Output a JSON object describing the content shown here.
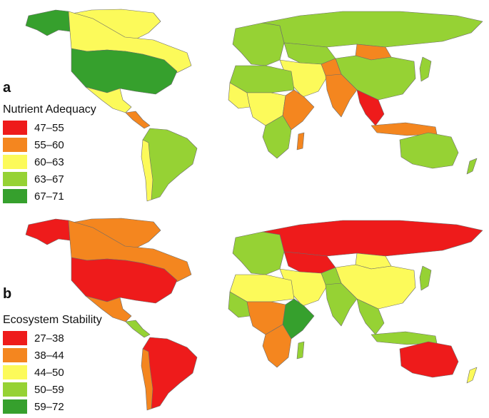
{
  "colors": {
    "red": "#ee1b1b",
    "orange": "#f4861f",
    "yellow": "#fcfa5a",
    "lightgreen": "#96d234",
    "green": "#36a02d",
    "border": "#6b6b6b"
  },
  "panels": [
    {
      "letter": "a",
      "legend_title": "Nutrient Adequacy",
      "legend": [
        {
          "label": "47–55",
          "color": "#ee1b1b"
        },
        {
          "label": "55–60",
          "color": "#f4861f"
        },
        {
          "label": "60–63",
          "color": "#fcfa5a"
        },
        {
          "label": "63–67",
          "color": "#96d234"
        },
        {
          "label": "67–71",
          "color": "#36a02d"
        }
      ],
      "regions": {
        "alaska": "green",
        "canada": "yellow",
        "greenland": "yellow",
        "usa": "green",
        "mexico": "yellow",
        "central_america": "orange",
        "south_america": "lightgreen",
        "andes": "yellow",
        "europe": "lightgreen",
        "russia": "lightgreen",
        "central_asia": "lightgreen",
        "mongolia": "orange",
        "china": "lightgreen",
        "middle_east": "yellow",
        "south_asia": "orange",
        "india": "orange",
        "southeast_asia": "red",
        "indonesia": "orange",
        "north_africa": "lightgreen",
        "west_africa": "yellow",
        "central_africa": "yellow",
        "east_africa": "orange",
        "southern_africa": "lightgreen",
        "madagascar": "orange",
        "australia": "lightgreen",
        "new_zealand": "lightgreen",
        "japan": "lightgreen"
      }
    },
    {
      "letter": "b",
      "legend_title": "Ecosystem Stability",
      "legend": [
        {
          "label": "27–38",
          "color": "#ee1b1b"
        },
        {
          "label": "38–44",
          "color": "#f4861f"
        },
        {
          "label": "44–50",
          "color": "#fcfa5a"
        },
        {
          "label": "50–59",
          "color": "#96d234"
        },
        {
          "label": "59–72",
          "color": "#36a02d"
        }
      ],
      "regions": {
        "alaska": "red",
        "canada": "orange",
        "greenland": "orange",
        "usa": "red",
        "mexico": "orange",
        "central_america": "lightgreen",
        "south_america": "red",
        "andes": "orange",
        "europe": "lightgreen",
        "russia": "red",
        "central_asia": "red",
        "mongolia": "yellow",
        "china": "yellow",
        "middle_east": "yellow",
        "south_asia": "lightgreen",
        "india": "lightgreen",
        "southeast_asia": "lightgreen",
        "indonesia": "lightgreen",
        "north_africa": "yellow",
        "west_africa": "lightgreen",
        "central_africa": "orange",
        "east_africa": "green",
        "southern_africa": "orange",
        "madagascar": "lightgreen",
        "australia": "red",
        "new_zealand": "yellow",
        "japan": "lightgreen"
      }
    }
  ]
}
